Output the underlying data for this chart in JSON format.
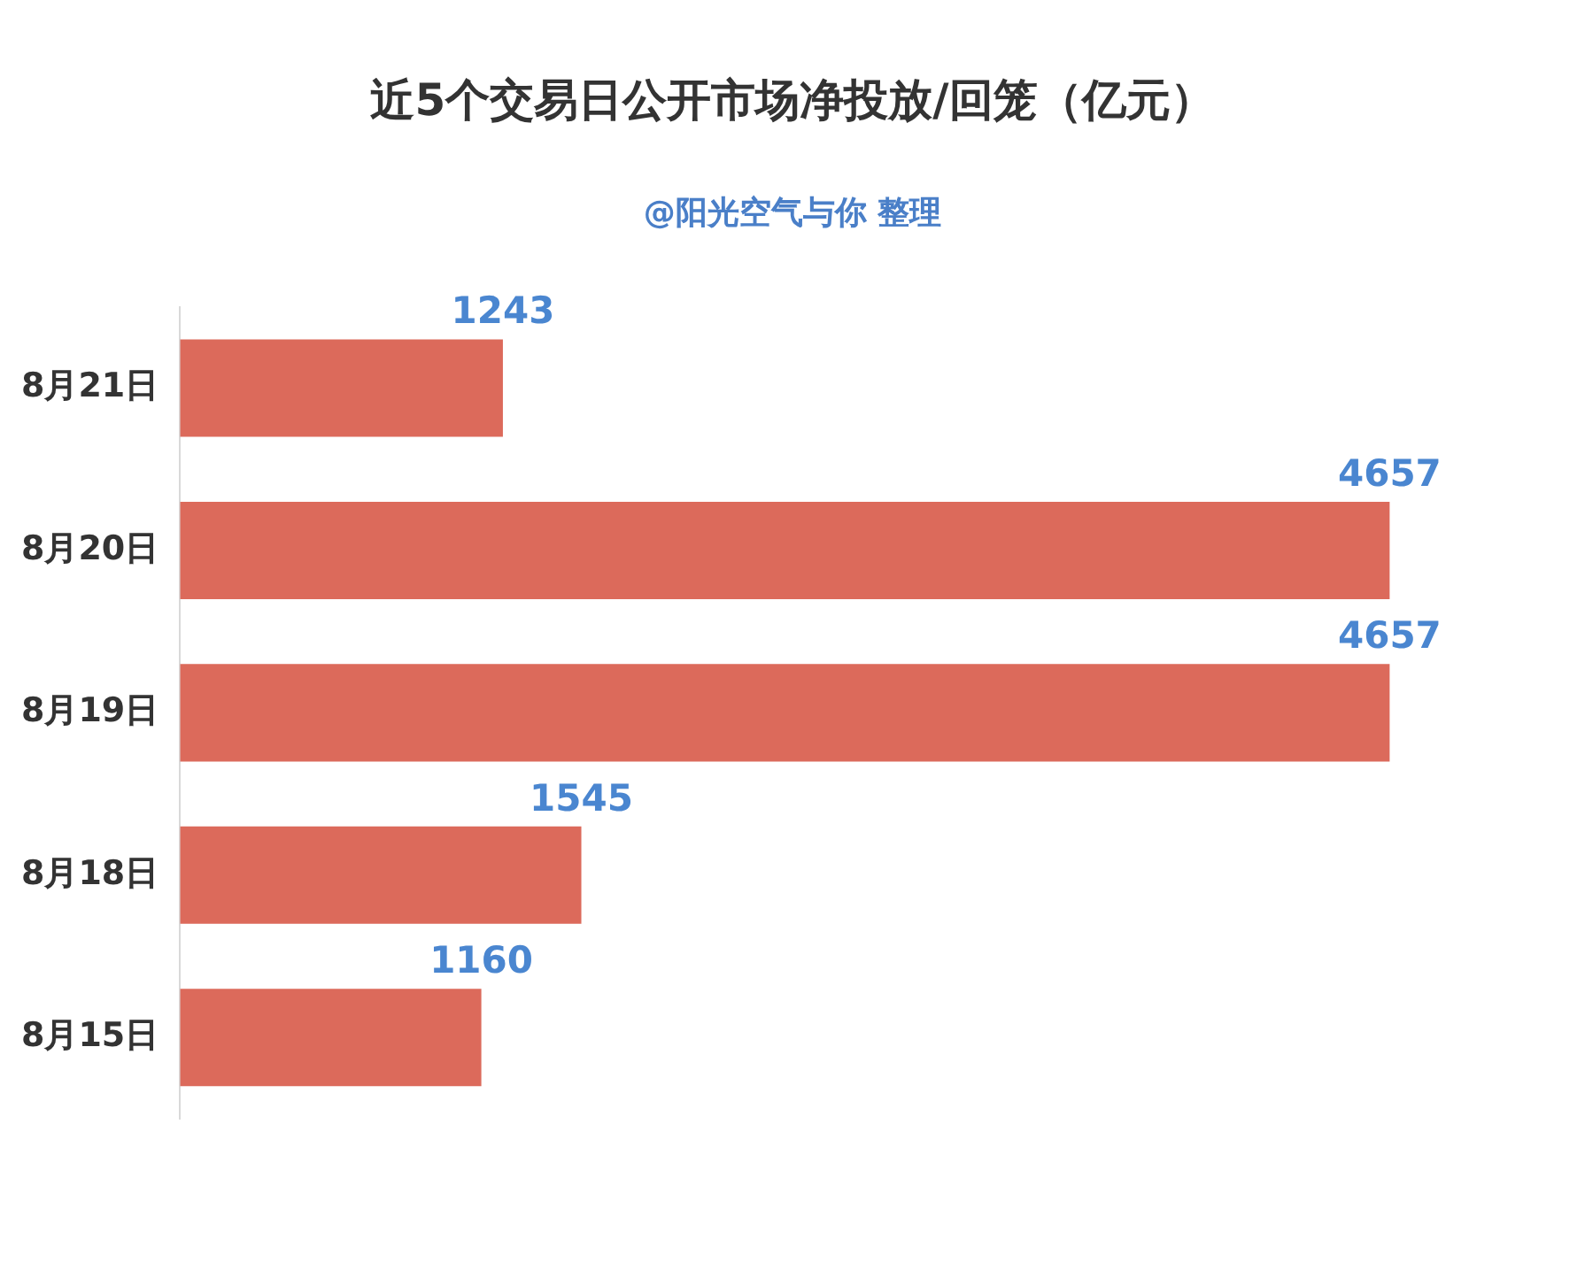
{
  "chart_data": {
    "type": "bar",
    "orientation": "horizontal",
    "title": "近5个交易日公开市场净投放/回笼（亿元）",
    "subtitle": "@阳光空气与你 整理",
    "categories": [
      "8月21日",
      "8月20日",
      "8月19日",
      "8月18日",
      "8月15日"
    ],
    "values": [
      1243,
      4657,
      4657,
      1545,
      1160
    ],
    "color": "#dc6a5b",
    "data_labels": true,
    "relative": false,
    "grid": false,
    "legend": false
  }
}
